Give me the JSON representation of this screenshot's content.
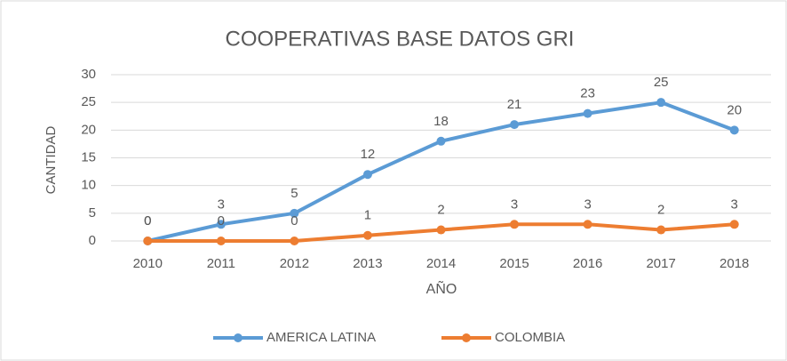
{
  "chart_data": {
    "type": "line",
    "title": "COOPERATIVAS BASE DATOS GRI",
    "x_label": "AÑO",
    "y_label": "CANTIDAD",
    "categories": [
      "2010",
      "2011",
      "2012",
      "2013",
      "2014",
      "2015",
      "2016",
      "2017",
      "2018"
    ],
    "series": [
      {
        "name": "AMERICA LATINA",
        "color": "#5b9bd5",
        "values": [
          0,
          3,
          5,
          12,
          18,
          21,
          23,
          25,
          20
        ]
      },
      {
        "name": "COLOMBIA",
        "color": "#ed7d31",
        "values": [
          0,
          0,
          0,
          1,
          2,
          3,
          3,
          2,
          3
        ]
      }
    ],
    "ylim": [
      0,
      30
    ],
    "yticks": [
      0,
      5,
      10,
      15,
      20,
      25,
      30
    ],
    "grid": true,
    "legend": "bottom"
  }
}
